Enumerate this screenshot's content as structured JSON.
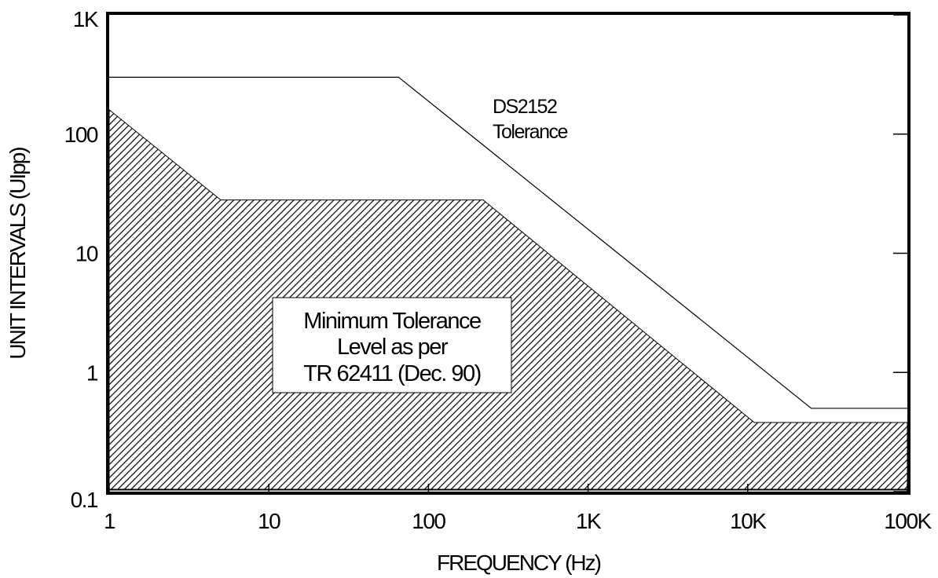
{
  "chart_data": {
    "type": "area",
    "title": "",
    "xlabel": "FREQUENCY (Hz)",
    "ylabel": "UNIT INTERVALS (UIpp)",
    "x_scale": "log",
    "y_scale": "log",
    "xlim": [
      1,
      100000
    ],
    "ylim": [
      0.1,
      1000
    ],
    "x_ticks": [
      1,
      10,
      100,
      1000,
      10000,
      100000
    ],
    "x_tick_labels": [
      "1",
      "10",
      "100",
      "1K",
      "10K",
      "100K"
    ],
    "y_ticks": [
      0.1,
      1,
      10,
      100,
      1000
    ],
    "y_tick_labels": [
      "0.1",
      "1",
      "10",
      "100",
      "1K"
    ],
    "grid": false,
    "series": [
      {
        "name": "DS2152 Tolerance",
        "style": "line",
        "color": "#000000",
        "x": [
          1,
          65,
          25000,
          100000
        ],
        "y": [
          300,
          300,
          0.5,
          0.5
        ]
      },
      {
        "name": "Minimum Tolerance Level as per TR 62411 (Dec. 90)",
        "style": "hatched-area",
        "color": "#000000",
        "x": [
          1,
          5,
          220,
          11000,
          100000
        ],
        "y": [
          160,
          28,
          28,
          0.38,
          0.38
        ]
      }
    ],
    "annotations": [
      {
        "lines": [
          "DS2152",
          "Tolerance"
        ]
      },
      {
        "lines": [
          "Minimum Tolerance",
          "Level as per",
          "TR 62411 (Dec. 90)"
        ]
      }
    ]
  }
}
